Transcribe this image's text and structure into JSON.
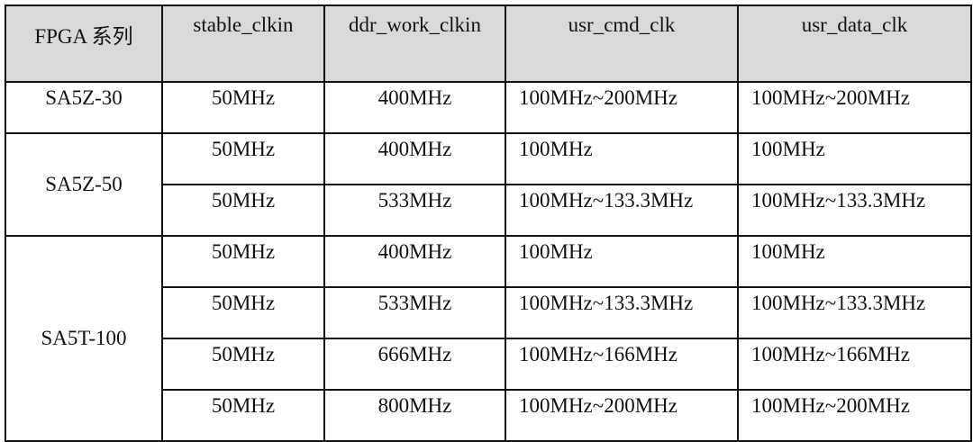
{
  "headers": [
    "FPGA 系列",
    "stable_clkin",
    "ddr_work_clkin",
    "usr_cmd_clk",
    "usr_data_clk"
  ],
  "header_background": "#d9d9d9",
  "groups": [
    {
      "series": "SA5Z-30",
      "rows": [
        [
          "50MHz",
          "400MHz",
          "100MHz~200MHz",
          "100MHz~200MHz"
        ]
      ]
    },
    {
      "series": "SA5Z-50",
      "rows": [
        [
          "50MHz",
          "400MHz",
          "100MHz",
          "100MHz"
        ],
        [
          "50MHz",
          "533MHz",
          "100MHz~133.3MHz",
          "100MHz~133.3MHz"
        ]
      ]
    },
    {
      "series": "SA5T-100",
      "rows": [
        [
          "50MHz",
          "400MHz",
          "100MHz",
          "100MHz"
        ],
        [
          "50MHz",
          "533MHz",
          "100MHz~133.3MHz",
          "100MHz~133.3MHz"
        ],
        [
          "50MHz",
          "666MHz",
          "100MHz~166MHz",
          "100MHz~166MHz"
        ],
        [
          "50MHz",
          "800MHz",
          "100MHz~200MHz",
          "100MHz~200MHz"
        ]
      ]
    }
  ]
}
